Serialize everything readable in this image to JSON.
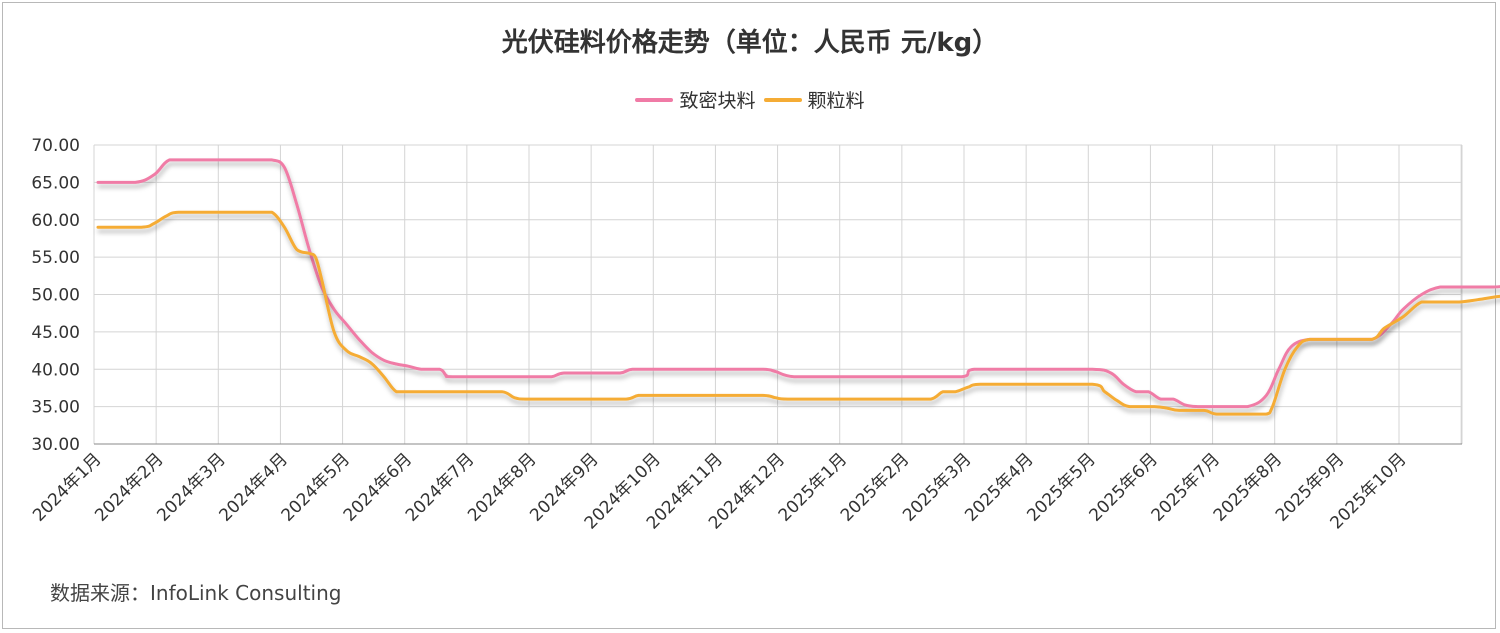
{
  "chart_data": {
    "type": "line",
    "title": "光伏硅料价格走势（单位：人民币 元/kg）",
    "source": "数据来源：InfoLink Consulting",
    "ylim": [
      30,
      70
    ],
    "y_ticks": [
      "30.00",
      "35.00",
      "40.00",
      "45.00",
      "50.00",
      "55.00",
      "60.00",
      "65.00",
      "70.00"
    ],
    "x_ticks": [
      "2024年1月",
      "2024年2月",
      "2024年3月",
      "2024年4月",
      "2024年5月",
      "2024年6月",
      "2024年7月",
      "2024年8月",
      "2024年9月",
      "2024年10月",
      "2024年11月",
      "2024年12月",
      "2025年1月",
      "2025年2月",
      "2025年3月",
      "2025年4月",
      "2025年5月",
      "2025年6月",
      "2025年7月",
      "2025年8月",
      "2025年9月",
      "2025年10月"
    ],
    "grid": true,
    "legend_position": "top-center",
    "series": [
      {
        "name": "致密块料",
        "color": "#f07ba6",
        "points": [
          [
            0,
            65
          ],
          [
            0.6,
            65
          ],
          [
            0.9,
            66
          ],
          [
            1.15,
            68
          ],
          [
            1.5,
            68
          ],
          [
            2.5,
            68
          ],
          [
            2.8,
            68
          ],
          [
            3.0,
            67
          ],
          [
            3.2,
            62
          ],
          [
            3.4,
            56
          ],
          [
            3.6,
            51
          ],
          [
            3.8,
            48
          ],
          [
            4.0,
            46
          ],
          [
            4.2,
            44
          ],
          [
            4.4,
            42.3
          ],
          [
            4.6,
            41.2
          ],
          [
            4.8,
            40.7
          ],
          [
            5.0,
            40.4
          ],
          [
            5.2,
            40
          ],
          [
            5.5,
            40
          ],
          [
            5.6,
            39.2
          ],
          [
            5.7,
            39
          ],
          [
            6.5,
            39
          ],
          [
            7.0,
            39
          ],
          [
            7.3,
            39
          ],
          [
            7.5,
            39.5
          ],
          [
            8.0,
            39.5
          ],
          [
            8.4,
            39.5
          ],
          [
            8.6,
            40
          ],
          [
            9.0,
            40
          ],
          [
            10.0,
            40
          ],
          [
            10.7,
            40
          ],
          [
            10.9,
            39.7
          ],
          [
            11.2,
            39
          ],
          [
            12.0,
            39
          ],
          [
            13.0,
            39
          ],
          [
            13.9,
            39
          ],
          [
            14.1,
            40
          ],
          [
            15.0,
            40
          ],
          [
            16.0,
            40
          ],
          [
            16.3,
            39.5
          ],
          [
            16.5,
            38
          ],
          [
            16.7,
            37
          ],
          [
            16.9,
            37
          ],
          [
            17.1,
            36
          ],
          [
            17.3,
            36
          ],
          [
            17.5,
            35.2
          ],
          [
            17.7,
            35
          ],
          [
            18.0,
            35
          ],
          [
            18.5,
            35
          ],
          [
            18.8,
            36.5
          ],
          [
            19.0,
            40
          ],
          [
            19.2,
            43
          ],
          [
            19.5,
            44
          ],
          [
            20.0,
            44
          ],
          [
            20.5,
            44
          ],
          [
            20.8,
            46
          ],
          [
            21.0,
            48
          ],
          [
            21.3,
            50
          ],
          [
            21.6,
            51
          ],
          [
            22.0,
            51
          ],
          [
            22.4,
            51
          ],
          [
            22.6,
            51.1
          ],
          [
            22.8,
            52
          ],
          [
            23.0,
            52
          ]
        ]
      },
      {
        "name": "颗粒料",
        "color": "#f5ac35",
        "points": [
          [
            0,
            59
          ],
          [
            0.7,
            59
          ],
          [
            0.9,
            59.5
          ],
          [
            1.1,
            60.5
          ],
          [
            1.3,
            61
          ],
          [
            2.0,
            61
          ],
          [
            2.6,
            61
          ],
          [
            2.8,
            61
          ],
          [
            3.0,
            59
          ],
          [
            3.2,
            56
          ],
          [
            3.4,
            55.5
          ],
          [
            3.5,
            55
          ],
          [
            3.6,
            52
          ],
          [
            3.8,
            45
          ],
          [
            4.0,
            42.5
          ],
          [
            4.2,
            41.7
          ],
          [
            4.4,
            40.8
          ],
          [
            4.6,
            39
          ],
          [
            4.8,
            37
          ],
          [
            5.0,
            37
          ],
          [
            6.0,
            37
          ],
          [
            6.5,
            37
          ],
          [
            6.7,
            36.2
          ],
          [
            6.9,
            36
          ],
          [
            7.5,
            36
          ],
          [
            8.0,
            36
          ],
          [
            8.5,
            36
          ],
          [
            8.7,
            36.5
          ],
          [
            9.0,
            36.5
          ],
          [
            10.0,
            36.5
          ],
          [
            10.7,
            36.5
          ],
          [
            10.9,
            36.2
          ],
          [
            11.1,
            36
          ],
          [
            12.0,
            36
          ],
          [
            13.0,
            36
          ],
          [
            13.4,
            36
          ],
          [
            13.6,
            37
          ],
          [
            13.8,
            37
          ],
          [
            14.0,
            37.6
          ],
          [
            14.2,
            38
          ],
          [
            15.0,
            38
          ],
          [
            16.0,
            38
          ],
          [
            16.2,
            37
          ],
          [
            16.4,
            35.8
          ],
          [
            16.6,
            35
          ],
          [
            17.0,
            35
          ],
          [
            17.2,
            34.8
          ],
          [
            17.4,
            34.5
          ],
          [
            17.8,
            34.5
          ],
          [
            18.0,
            34
          ],
          [
            18.5,
            34
          ],
          [
            18.8,
            34
          ],
          [
            18.9,
            35
          ],
          [
            19.1,
            40
          ],
          [
            19.3,
            43
          ],
          [
            19.5,
            44
          ],
          [
            20.0,
            44
          ],
          [
            20.5,
            44
          ],
          [
            20.7,
            45.5
          ],
          [
            21.0,
            47
          ],
          [
            21.3,
            49
          ],
          [
            21.6,
            49
          ],
          [
            21.9,
            49
          ],
          [
            22.2,
            49.3
          ],
          [
            22.6,
            49.8
          ],
          [
            23.0,
            50
          ]
        ]
      }
    ]
  }
}
